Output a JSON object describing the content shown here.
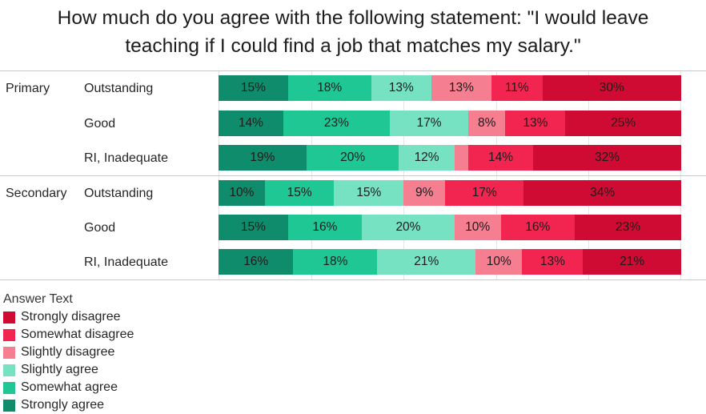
{
  "title": "How much do you agree with the following statement: \"I would leave teaching if I could find a job that matches my salary.\"",
  "chart_data": {
    "type": "bar",
    "stacked": true,
    "orientation": "horizontal",
    "x_range": [
      0,
      100
    ],
    "value_unit": "%",
    "gridlines": {
      "step_percent": 20,
      "color": "#e5e5e5"
    },
    "series": [
      {
        "name": "Strongly agree",
        "color": "#0f8c6b"
      },
      {
        "name": "Somewhat agree",
        "color": "#1fc795"
      },
      {
        "name": "Slightly agree",
        "color": "#77e2c1"
      },
      {
        "name": "Slightly disagree",
        "color": "#f57f90"
      },
      {
        "name": "Somewhat disagree",
        "color": "#f22550"
      },
      {
        "name": "Strongly disagree",
        "color": "#cf0a33"
      }
    ],
    "rows": [
      {
        "group": "Primary",
        "label": "Outstanding",
        "values": [
          15,
          18,
          13,
          13,
          11,
          30
        ],
        "labels": [
          "15%",
          "18%",
          "13%",
          "13%",
          "11%",
          "30%"
        ]
      },
      {
        "group": "",
        "label": "Good",
        "values": [
          14,
          23,
          17,
          8,
          13,
          25
        ],
        "labels": [
          "14%",
          "23%",
          "17%",
          "8%",
          "13%",
          "25%"
        ]
      },
      {
        "group": "",
        "label": "RI, Inadequate",
        "values": [
          19,
          20,
          12,
          3,
          14,
          32
        ],
        "labels": [
          "19%",
          "20%",
          "12%",
          "",
          "14%",
          "32%"
        ]
      },
      {
        "group": "Secondary",
        "label": "Outstanding",
        "values": [
          10,
          15,
          15,
          9,
          17,
          34
        ],
        "labels": [
          "10%",
          "15%",
          "15%",
          "9%",
          "17%",
          "34%"
        ]
      },
      {
        "group": "",
        "label": "Good",
        "values": [
          15,
          16,
          20,
          10,
          16,
          23
        ],
        "labels": [
          "15%",
          "16%",
          "20%",
          "10%",
          "16%",
          "23%"
        ]
      },
      {
        "group": "",
        "label": "RI, Inadequate",
        "values": [
          16,
          18,
          21,
          10,
          13,
          21
        ],
        "labels": [
          "16%",
          "18%",
          "21%",
          "10%",
          "13%",
          "21%"
        ]
      }
    ]
  },
  "legend": {
    "title": "Answer Text",
    "entries": [
      {
        "label": "Strongly disagree",
        "color": "#cf0a33"
      },
      {
        "label": "Somewhat disagree",
        "color": "#f22550"
      },
      {
        "label": "Slightly disagree",
        "color": "#f57f90"
      },
      {
        "label": "Slightly agree",
        "color": "#77e2c1"
      },
      {
        "label": "Somewhat agree",
        "color": "#1fc795"
      },
      {
        "label": "Strongly agree",
        "color": "#0f8c6b"
      }
    ]
  }
}
